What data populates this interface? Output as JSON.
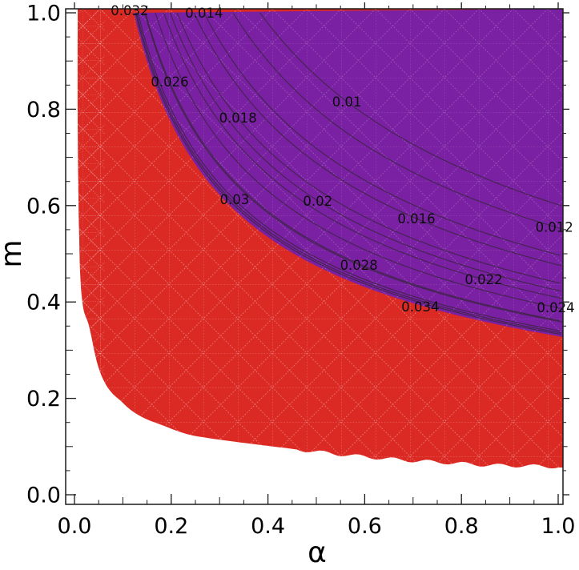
{
  "figure": {
    "background": "#ffffff",
    "frame_color": "#1b1b1b"
  },
  "axes": {
    "xlabel": "α",
    "ylabel": "m",
    "xlim": [
      0,
      1
    ],
    "ylim": [
      0,
      1
    ],
    "x_tick_labels": [
      "0.0",
      "0.2",
      "0.4",
      "0.6",
      "0.8",
      "1.0"
    ],
    "y_tick_labels": [
      "0.0",
      "0.2",
      "0.4",
      "0.6",
      "0.8",
      "1.0"
    ],
    "x_major": [
      0,
      0.2,
      0.4,
      0.6,
      0.8,
      1.0
    ],
    "y_major": [
      0,
      0.2,
      0.4,
      0.6,
      0.8,
      1.0
    ],
    "mid_minor": [
      0.1,
      0.3,
      0.5,
      0.7,
      0.9
    ],
    "minor": [
      0.05,
      0.15,
      0.25,
      0.35,
      0.45,
      0.55,
      0.65,
      0.75,
      0.85,
      0.95
    ]
  },
  "chart_data": {
    "type": "contour-region-plot",
    "title": "",
    "xlabel": "α",
    "ylabel": "m",
    "xlim": [
      0,
      1
    ],
    "ylim": [
      0,
      1
    ],
    "grid": false,
    "legend": false,
    "regions": [
      {
        "name": "red-region",
        "fill": "#DB2A24",
        "mesh_line": "rgba(255,255,255,0.33)",
        "boundary": [
          [
            0.0066,
            1.0
          ],
          [
            0.0066,
            0.777
          ],
          [
            0.0083,
            0.611
          ],
          [
            0.0099,
            0.528
          ],
          [
            0.0116,
            0.462
          ],
          [
            0.0149,
            0.412
          ],
          [
            0.0199,
            0.379
          ],
          [
            0.0281,
            0.357
          ],
          [
            0.0348,
            0.329
          ],
          [
            0.0414,
            0.296
          ],
          [
            0.0513,
            0.259
          ],
          [
            0.0646,
            0.229
          ],
          [
            0.0795,
            0.209
          ],
          [
            0.0944,
            0.196
          ],
          [
            0.116,
            0.176
          ],
          [
            0.144,
            0.159
          ],
          [
            0.177,
            0.146
          ],
          [
            0.232,
            0.126
          ],
          [
            0.288,
            0.116
          ],
          [
            0.371,
            0.105
          ],
          [
            0.442,
            0.0963
          ],
          [
            0.525,
            0.0864
          ],
          [
            0.608,
            0.0781
          ],
          [
            0.69,
            0.0714
          ],
          [
            0.773,
            0.0664
          ],
          [
            0.856,
            0.0615
          ],
          [
            0.939,
            0.0598
          ],
          [
            1.0,
            0.058
          ]
        ]
      },
      {
        "name": "purple-region",
        "fill": "#7A20A2",
        "mesh_line": "rgba(255,255,255,0.22)",
        "boundary_power": {
          "c": 0.329,
          "p": 0.5295,
          "alpha_min": 0.1225
        }
      }
    ],
    "contours": {
      "stroke": "#38263E",
      "power_p": 0.5295,
      "levels": [
        {
          "label": "0.01",
          "c": 0.602,
          "label_at": [
            0.563,
            0.816
          ]
        },
        {
          "label": "0.012",
          "c": 0.554,
          "label_at": [
            0.992,
            0.556
          ]
        },
        {
          "label": "0.014",
          "c": 0.498,
          "label_at": [
            0.268,
            1.0
          ]
        },
        {
          "label": "0.016",
          "c": 0.477,
          "label_at": [
            0.707,
            0.573
          ]
        },
        {
          "label": "0.018",
          "c": 0.44,
          "label_at": [
            0.338,
            0.782
          ]
        },
        {
          "label": "0.02",
          "c": 0.424,
          "label_at": [
            0.503,
            0.61
          ]
        },
        {
          "label": "0.022",
          "c": 0.409,
          "label_at": [
            0.846,
            0.447
          ]
        },
        {
          "label": "0.024",
          "c": 0.388,
          "label_at": [
            0.995,
            0.389
          ]
        },
        {
          "label": "0.026",
          "c": 0.362,
          "label_at": [
            0.197,
            0.857
          ]
        },
        {
          "label": "0.028",
          "c": 0.36,
          "label_at": [
            0.588,
            0.477
          ]
        },
        {
          "label": "0.03",
          "c": 0.341,
          "label_at": [
            0.331,
            0.613
          ]
        },
        {
          "label": "0.032",
          "c": 0.337,
          "label_at": [
            0.114,
            1.005
          ]
        },
        {
          "label": "0.034",
          "c": 0.334,
          "label_at": [
            0.715,
            0.39
          ]
        }
      ]
    }
  }
}
